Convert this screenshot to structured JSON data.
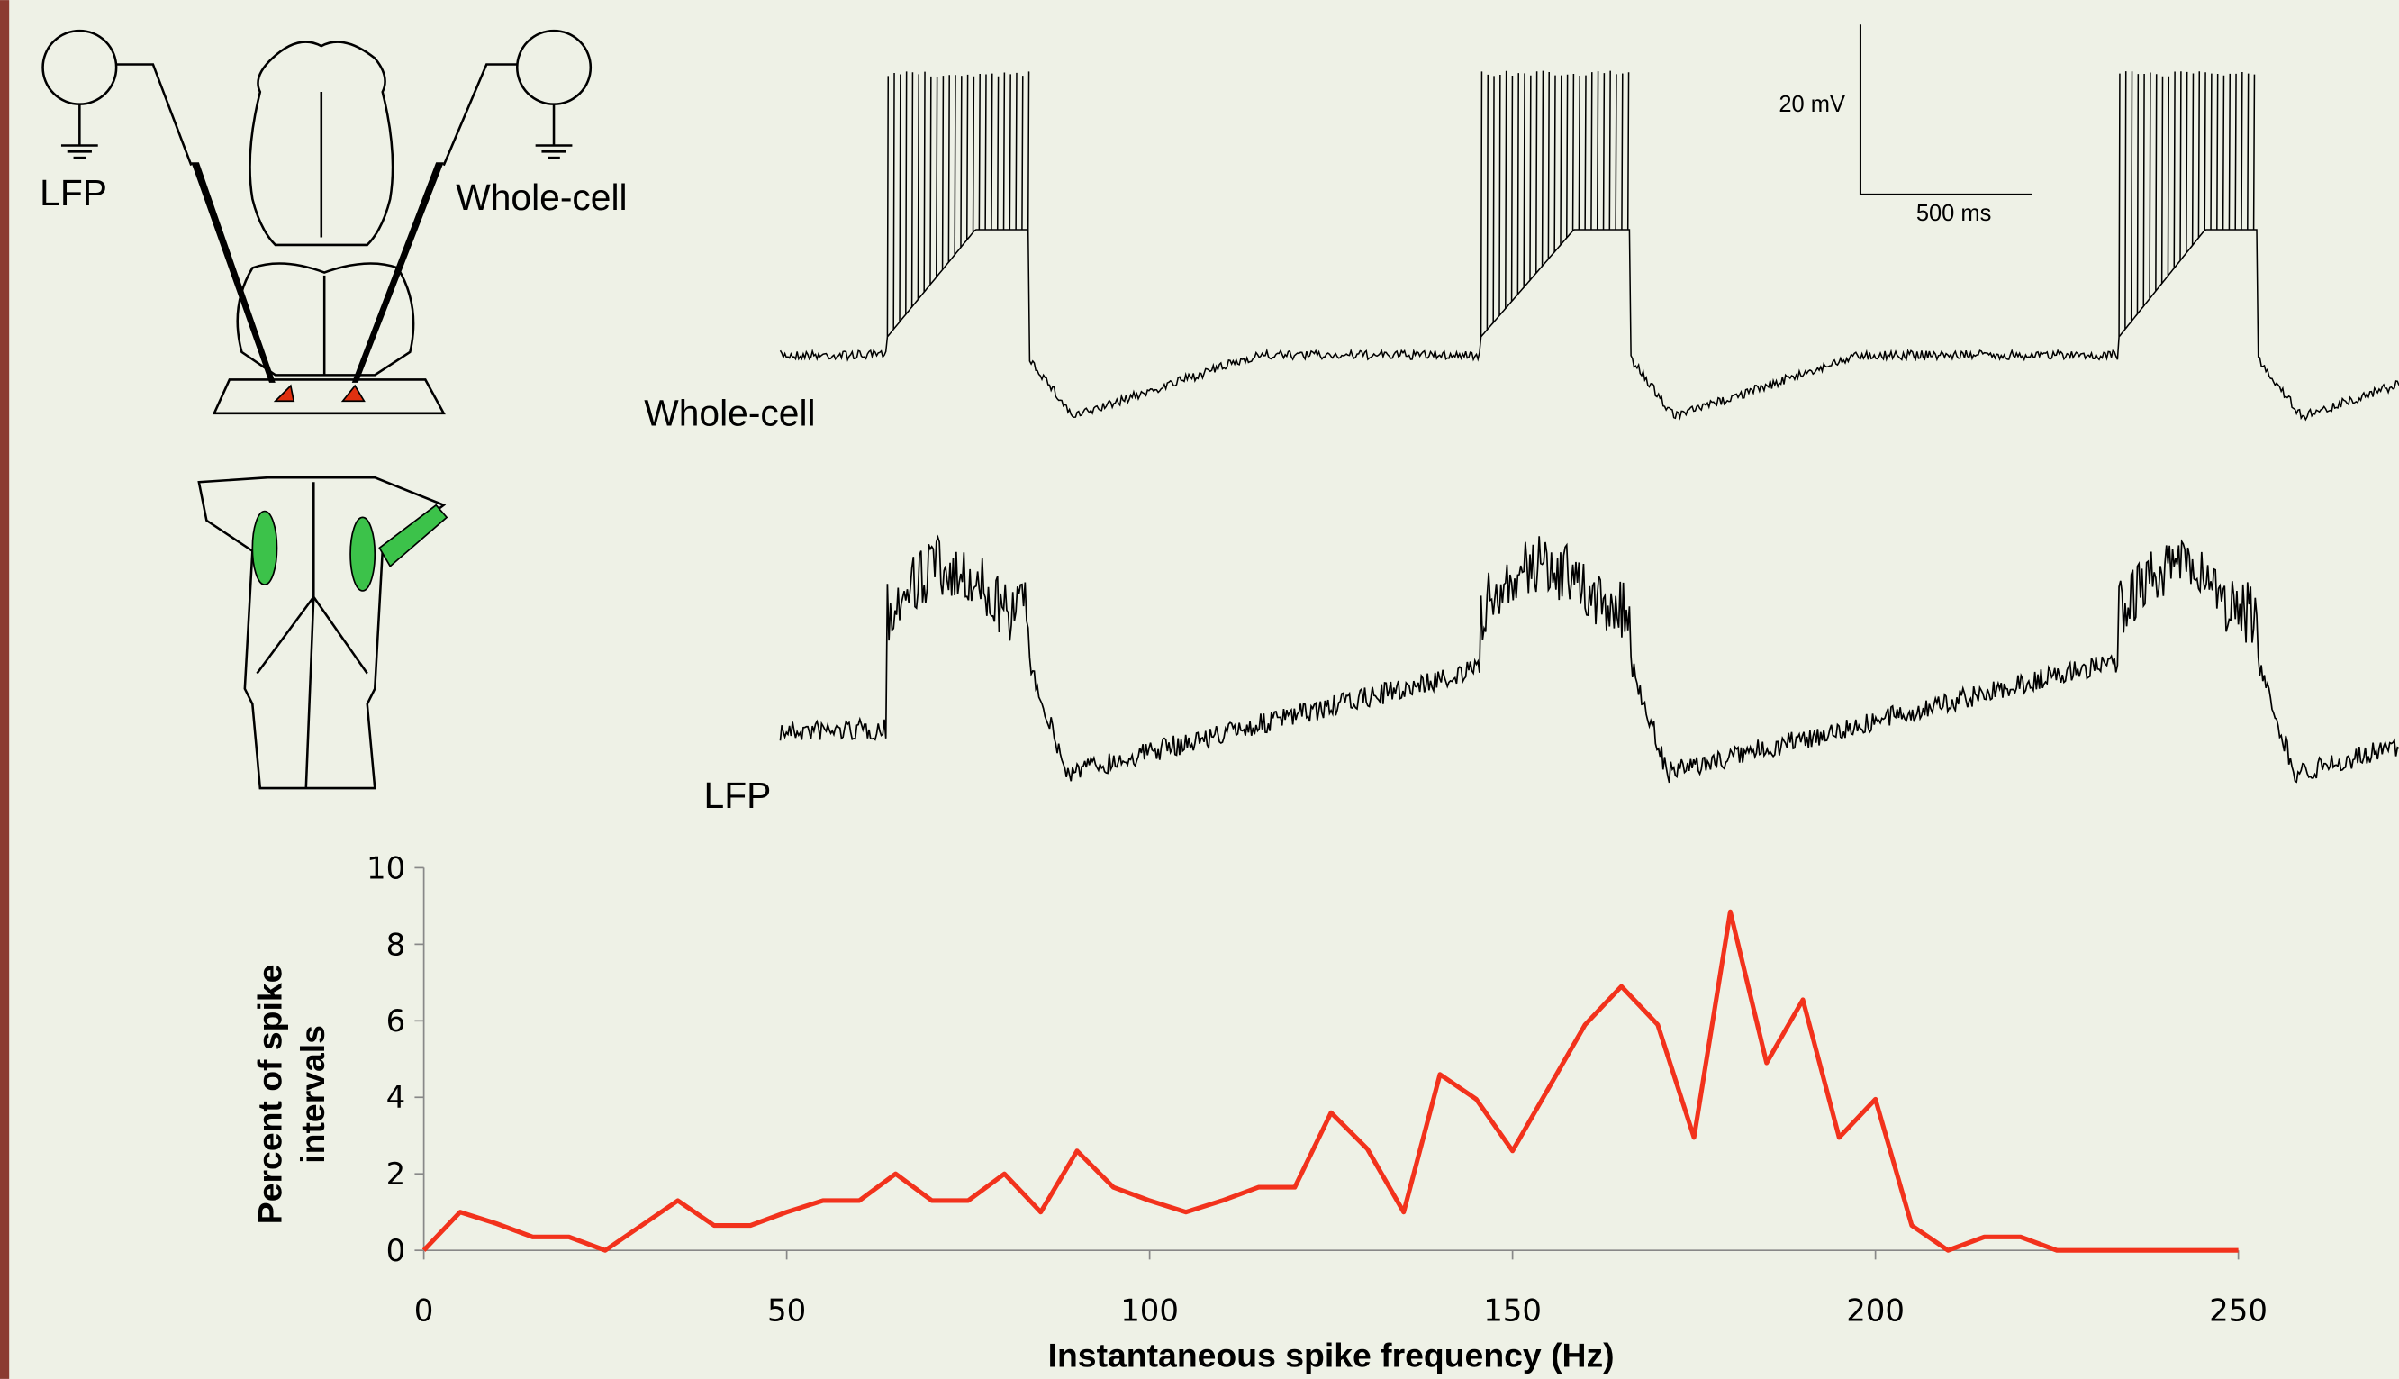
{
  "figure": {
    "diagram_labels": [
      "LFP",
      "Whole-cell"
    ],
    "trace_labels": [
      "Whole-cell",
      "LFP"
    ],
    "scale_bar": {
      "voltage": "20 mV",
      "time": "500 ms"
    }
  },
  "chart_data": {
    "type": "line",
    "xlabel": "Instantaneous spike frequency (Hz)",
    "ylabel": [
      "Percent of spike",
      "intervals"
    ],
    "x": [
      0,
      5,
      10,
      15,
      20,
      25,
      30,
      35,
      40,
      45,
      50,
      55,
      60,
      65,
      70,
      75,
      80,
      85,
      90,
      95,
      100,
      105,
      110,
      115,
      120,
      125,
      130,
      135,
      140,
      145,
      150,
      155,
      160,
      165,
      170,
      175,
      180,
      185,
      190,
      195,
      200,
      205,
      210,
      215,
      220,
      225,
      230,
      235,
      240,
      245,
      250
    ],
    "series": [
      {
        "color": "#f2321c",
        "values": [
          0,
          1,
          0.7,
          0.35,
          0.35,
          0,
          0.65,
          1.3,
          0.65,
          0.65,
          1,
          1.3,
          1.3,
          2,
          1.3,
          1.3,
          2,
          1,
          2.6,
          1.65,
          1.3,
          1,
          1.3,
          1.65,
          1.65,
          3.6,
          2.65,
          1,
          4.6,
          3.95,
          2.6,
          4.25,
          5.9,
          6.9,
          5.9,
          2.95,
          8.85,
          4.9,
          6.55,
          2.95,
          3.95,
          0.65,
          0,
          0.35,
          0.35,
          0,
          0,
          0,
          0,
          0,
          0
        ]
      }
    ],
    "xlim": [
      0,
      250
    ],
    "ylim": [
      0,
      10
    ],
    "xticks": [
      0,
      50,
      100,
      150,
      200,
      250
    ],
    "yticks": [
      0,
      2,
      4,
      6,
      8,
      10
    ]
  }
}
